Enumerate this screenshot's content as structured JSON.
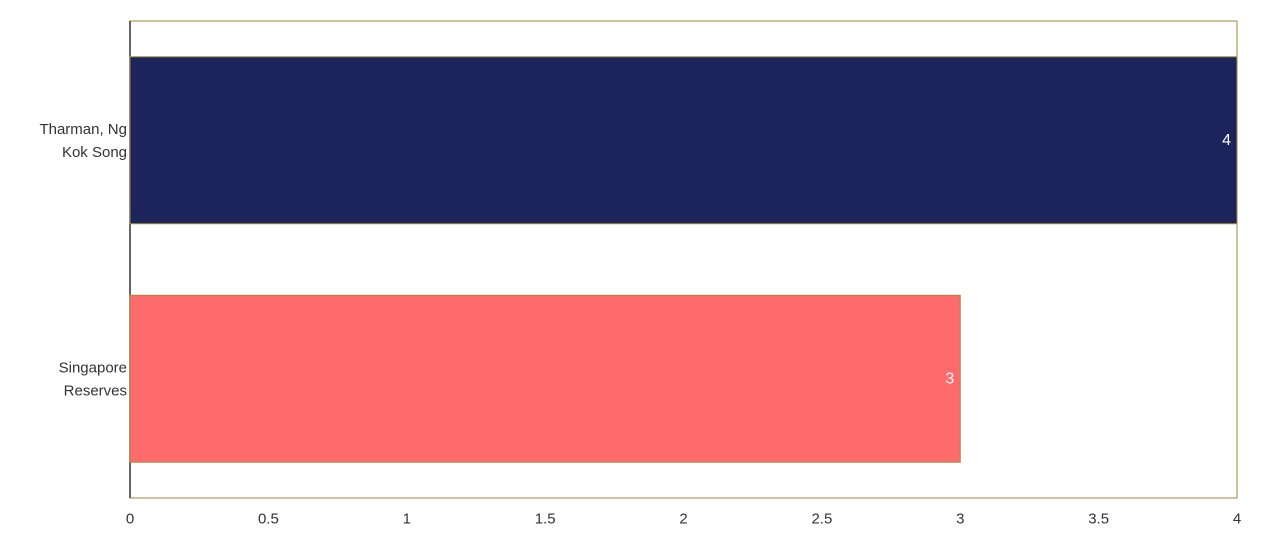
{
  "chart_data": {
    "type": "bar",
    "orientation": "horizontal",
    "categories": [
      "Tharman, Ng Kok Song",
      "Singapore Reserves"
    ],
    "category_label_lines": [
      [
        "Tharman, Ng",
        "Kok Song"
      ],
      [
        "Singapore",
        "Reserves"
      ]
    ],
    "values": [
      4,
      3
    ],
    "data_labels": [
      "4",
      "3"
    ],
    "bar_colors": [
      "#1d245b",
      "#ff6b6b"
    ],
    "bar_border_color": "#a08a3c",
    "frame_color": "#a08a3c",
    "axis_color": "#333333",
    "xlim": [
      0,
      4
    ],
    "x_ticks": [
      0,
      0.5,
      1,
      1.5,
      2,
      2.5,
      3,
      3.5,
      4
    ],
    "x_tick_labels": [
      "0",
      "0.5",
      "1",
      "1.5",
      "2",
      "2.5",
      "3",
      "3.5",
      "4"
    ],
    "title": "",
    "xlabel": "",
    "ylabel": "",
    "grid": false,
    "legend": false
  }
}
